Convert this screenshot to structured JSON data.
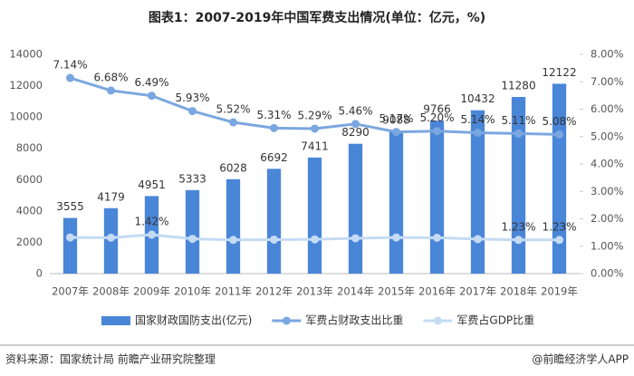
{
  "chart_data": {
    "type": "bar-line",
    "title": "图表1：2007-2019年中国军费支出情况(单位：亿元，%)",
    "categories": [
      "2007年",
      "2008年",
      "2009年",
      "2010年",
      "2011年",
      "2012年",
      "2013年",
      "2014年",
      "2015年",
      "2016年",
      "2017年",
      "2018年",
      "2019年"
    ],
    "series": [
      {
        "name": "国家财政国防支出(亿元)",
        "type": "bar",
        "color": "#4a86d8",
        "values": [
          3555,
          4179,
          4951,
          5333,
          6028,
          6692,
          7411,
          8290,
          9088,
          9766,
          10432,
          11280,
          12122
        ]
      },
      {
        "name": "军费占财政支出比重",
        "type": "line",
        "axis": "y2",
        "color": "#7ba7e0",
        "values": [
          7.14,
          6.68,
          6.49,
          5.93,
          5.52,
          5.31,
          5.29,
          5.46,
          5.17,
          5.2,
          5.14,
          5.11,
          5.08
        ],
        "value_labels": [
          "7.14%",
          "6.68%",
          "6.49%",
          "5.93%",
          "5.52%",
          "5.31%",
          "5.29%",
          "5.46%",
          "5.17%",
          "5.20%",
          "5.14%",
          "5.11%",
          "5.08%"
        ]
      },
      {
        "name": "军费占GDP比重",
        "type": "line",
        "axis": "y2",
        "color": "#c5dbf4",
        "values": [
          1.32,
          1.31,
          1.42,
          1.27,
          1.23,
          1.24,
          1.25,
          1.29,
          1.32,
          1.31,
          1.26,
          1.23,
          1.23
        ],
        "value_labels": [
          null,
          null,
          "1.42%",
          null,
          null,
          null,
          null,
          null,
          null,
          null,
          null,
          "1.23%",
          "1.23%"
        ]
      }
    ],
    "ylim": [
      0,
      14000
    ],
    "yticks": [
      0,
      2000,
      4000,
      6000,
      8000,
      10000,
      12000,
      14000
    ],
    "y2lim": [
      0,
      8
    ],
    "y2ticks": [
      {
        "value": 0,
        "label": "0.00%"
      },
      {
        "value": 1,
        "label": "1.00%"
      },
      {
        "value": 2,
        "label": "2.00%"
      },
      {
        "value": 3,
        "label": "3.00%"
      },
      {
        "value": 4,
        "label": "4.00%"
      },
      {
        "value": 5,
        "label": "5.00%"
      },
      {
        "value": 6,
        "label": "6.00%"
      },
      {
        "value": 7,
        "label": "7.00%"
      },
      {
        "value": 8,
        "label": "8.00%"
      }
    ],
    "grid": false,
    "source": "资料来源：国家统计局 前瞻产业研究院整理",
    "brand": "@前瞻经济学人APP"
  }
}
